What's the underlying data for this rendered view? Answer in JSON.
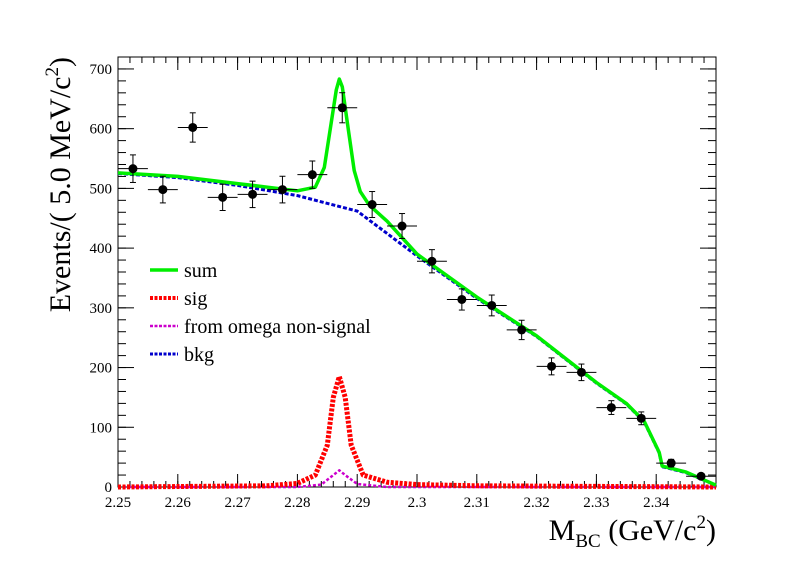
{
  "chart_data": {
    "type": "line",
    "xlabel": {
      "main": "M",
      "sub": "BC",
      "unit_open": " (GeV/c",
      "unit_sup": "2",
      "unit_close": ")"
    },
    "ylabel": {
      "main": "Events/(  5.0 MeV/c",
      "sup": "2",
      "close": ")"
    },
    "xlim": [
      2.25,
      2.35
    ],
    "ylim": [
      0,
      720
    ],
    "x_ticks": [
      2.25,
      2.26,
      2.27,
      2.28,
      2.29,
      2.3,
      2.31,
      2.32,
      2.33,
      2.34
    ],
    "x_tick_labels": [
      "2.25",
      "2.26",
      "2.27",
      "2.28",
      "2.29",
      "2.3",
      "2.31",
      "2.32",
      "2.33",
      "2.34"
    ],
    "y_ticks": [
      0,
      100,
      200,
      300,
      400,
      500,
      600,
      700
    ],
    "y_tick_labels": [
      "0",
      "100",
      "200",
      "300",
      "400",
      "500",
      "600",
      "700"
    ],
    "legend": {
      "position": "center-left",
      "entries": [
        {
          "label": "sum",
          "color": "#00ee00",
          "style": "solid"
        },
        {
          "label": "sig",
          "color": "#ff0000",
          "style": "dotted"
        },
        {
          "label": "from omega non-signal",
          "color": "#cc00cc",
          "style": "dotted"
        },
        {
          "label": "bkg",
          "color": "#0000cc",
          "style": "dotted"
        }
      ]
    },
    "data_points": {
      "x": [
        2.2525,
        2.2575,
        2.2625,
        2.2675,
        2.2725,
        2.2775,
        2.2825,
        2.2875,
        2.2925,
        2.2975,
        2.3025,
        2.3075,
        2.3125,
        2.3175,
        2.3225,
        2.3275,
        2.3325,
        2.3375,
        2.3425,
        2.3475
      ],
      "y": [
        533,
        498,
        602,
        485,
        490,
        498,
        523,
        635,
        473,
        437,
        378,
        314,
        304,
        263,
        202,
        192,
        133,
        115,
        40,
        18
      ],
      "x_err": 0.0025
    },
    "series": [
      {
        "name": "sum",
        "x": [
          2.25,
          2.26,
          2.27,
          2.275,
          2.28,
          2.283,
          2.2845,
          2.2855,
          2.2865,
          2.287,
          2.2875,
          2.2885,
          2.2895,
          2.2905,
          2.292,
          2.295,
          2.3,
          2.31,
          2.32,
          2.33,
          2.335,
          2.338,
          2.3405,
          2.341,
          2.345,
          2.35
        ],
        "y": [
          526,
          520,
          508,
          502,
          496,
          502,
          535,
          600,
          665,
          683,
          670,
          600,
          530,
          495,
          472,
          445,
          390,
          318,
          253,
          175,
          140,
          110,
          58,
          35,
          25,
          3
        ]
      },
      {
        "name": "sig",
        "x": [
          2.25,
          2.275,
          2.28,
          2.283,
          2.285,
          2.286,
          2.287,
          2.288,
          2.289,
          2.291,
          2.295,
          2.3,
          2.31,
          2.35
        ],
        "y": [
          0,
          2,
          6,
          20,
          70,
          150,
          185,
          150,
          70,
          20,
          8,
          4,
          2,
          0
        ]
      },
      {
        "name": "from omega non-signal",
        "x": [
          2.25,
          2.28,
          2.284,
          2.286,
          2.287,
          2.288,
          2.29,
          2.295,
          2.35
        ],
        "y": [
          0,
          0,
          4,
          20,
          28,
          20,
          5,
          0,
          0
        ]
      },
      {
        "name": "bkg",
        "x": [
          2.25,
          2.26,
          2.27,
          2.28,
          2.29,
          2.3,
          2.31,
          2.32,
          2.33,
          2.335,
          2.338,
          2.3405,
          2.341,
          2.345,
          2.35
        ],
        "y": [
          525,
          518,
          505,
          488,
          462,
          387,
          316,
          252,
          174,
          139,
          109,
          57,
          34,
          24,
          3
        ]
      }
    ]
  }
}
